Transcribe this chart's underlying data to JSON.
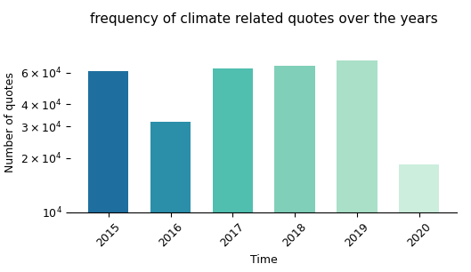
{
  "years": [
    "2015",
    "2016",
    "2017",
    "2018",
    "2019",
    "2020"
  ],
  "values": [
    61000,
    32000,
    63000,
    65500,
    70000,
    18500
  ],
  "bar_colors": [
    "#1e6f9f",
    "#2b8faa",
    "#50bfb0",
    "#80cfb8",
    "#aadfc8",
    "#cceedd"
  ],
  "title": "frequency of climate related quotes over the years",
  "xlabel": "Time",
  "ylabel": "Number of quotes",
  "ylim_min": 10000,
  "ylim_max": 100000,
  "yticks": [
    10000,
    20000,
    30000,
    40000,
    60000
  ],
  "title_fontsize": 11,
  "axis_fontsize": 9,
  "tick_fontsize": 9,
  "background_color": "#ffffff"
}
